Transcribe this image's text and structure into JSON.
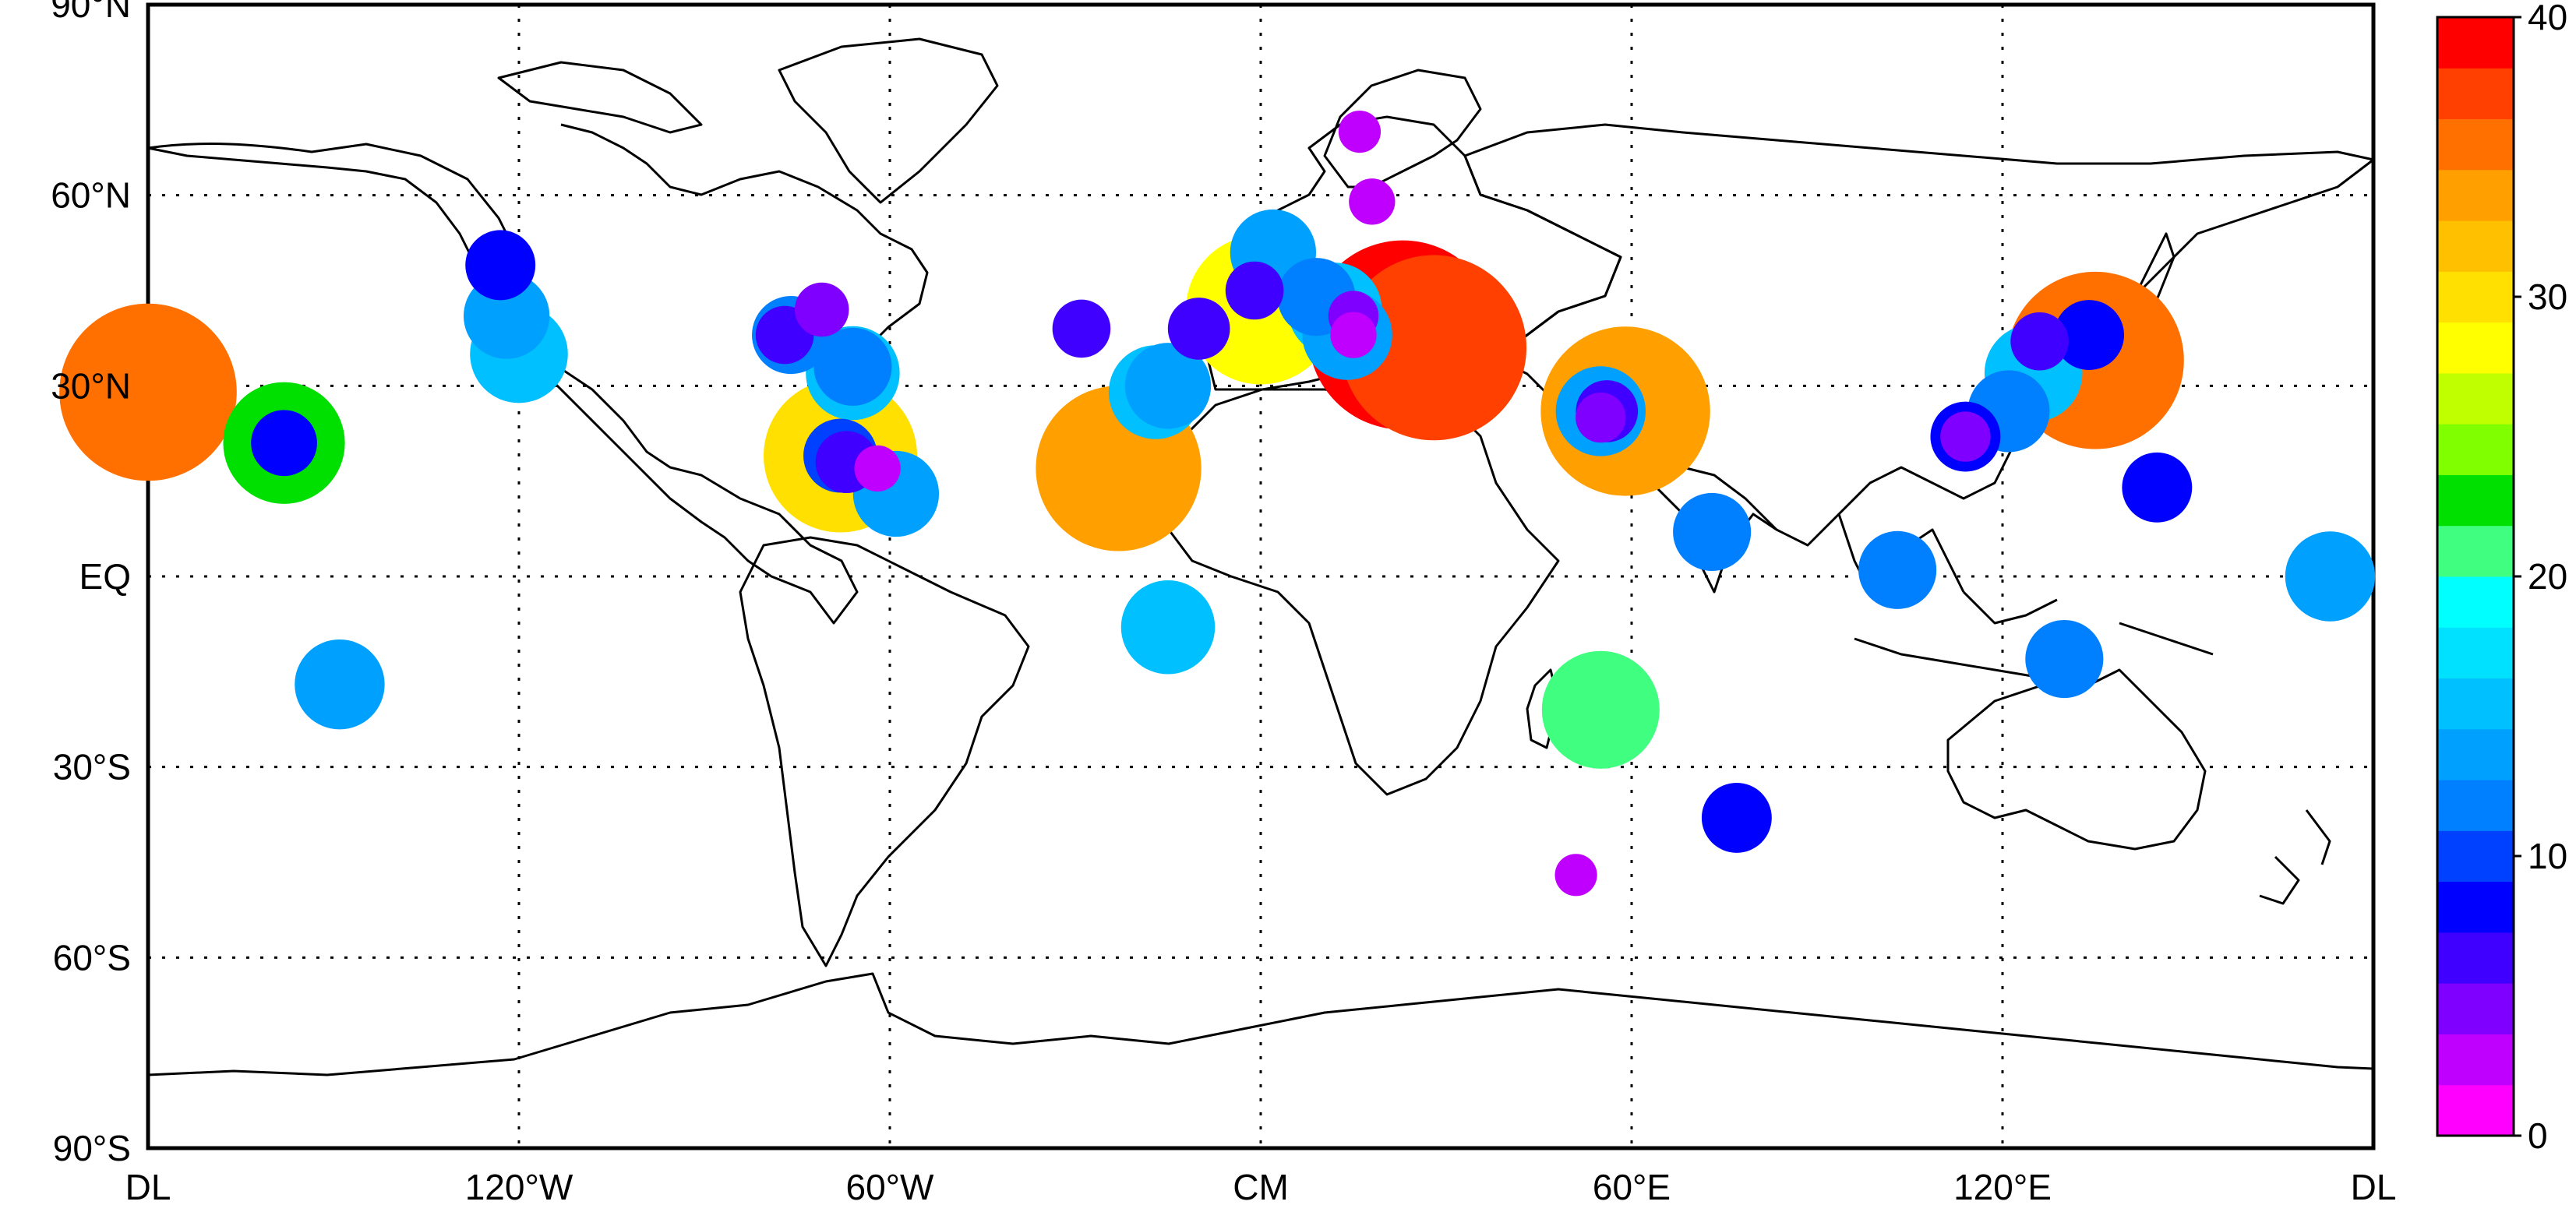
{
  "map": {
    "lat_labels": [
      {
        "lat": 90,
        "text": "90°N"
      },
      {
        "lat": 60,
        "text": "60°N"
      },
      {
        "lat": 30,
        "text": "30°N"
      },
      {
        "lat": 0,
        "text": "EQ"
      },
      {
        "lat": -30,
        "text": "30°S"
      },
      {
        "lat": -60,
        "text": "60°S"
      },
      {
        "lat": -90,
        "text": "90°S"
      }
    ],
    "lon_labels": [
      {
        "lon": -180,
        "text": "DL"
      },
      {
        "lon": -120,
        "text": "120°W"
      },
      {
        "lon": -60,
        "text": "60°W"
      },
      {
        "lon": 0,
        "text": "CM"
      },
      {
        "lon": 60,
        "text": "60°E"
      },
      {
        "lon": 120,
        "text": "120°E"
      },
      {
        "lon": 180,
        "text": "DL"
      }
    ],
    "grid_lons": [
      -180,
      -120,
      -60,
      0,
      60,
      120,
      180
    ],
    "grid_lats": [
      60,
      30,
      0,
      -30,
      -60
    ]
  },
  "colorbar": {
    "min": 0,
    "max": 40,
    "tick_labels": [
      {
        "value": 40,
        "text": "40"
      },
      {
        "value": 30,
        "text": "30"
      },
      {
        "value": 20,
        "text": "20"
      },
      {
        "value": 10,
        "text": "10"
      },
      {
        "value": 0,
        "text": "0"
      }
    ],
    "colors": [
      "#ff00ff",
      "#c000ff",
      "#8000ff",
      "#4000ff",
      "#0000ff",
      "#0040ff",
      "#0080ff",
      "#00a0ff",
      "#00c0ff",
      "#00e0ff",
      "#00ffff",
      "#40ff80",
      "#00e000",
      "#80ff00",
      "#c0ff00",
      "#ffff00",
      "#ffe000",
      "#ffc000",
      "#ffa000",
      "#ff7000",
      "#ff4000",
      "#ff0000"
    ]
  },
  "stations": [
    {
      "lon": -180,
      "lat": 29,
      "value": 36
    },
    {
      "lon": -158,
      "lat": 21,
      "value": 22
    },
    {
      "lon": -158,
      "lat": 21,
      "value": 8
    },
    {
      "lon": -149,
      "lat": -17,
      "value": 14
    },
    {
      "lon": -123,
      "lat": 49,
      "value": 9
    },
    {
      "lon": -122,
      "lat": 41,
      "value": 13
    },
    {
      "lon": -120,
      "lat": 35,
      "value": 16
    },
    {
      "lon": -71,
      "lat": 42,
      "value": 5
    },
    {
      "lon": -76,
      "lat": 38,
      "value": 11
    },
    {
      "lon": -77,
      "lat": 38,
      "value": 6
    },
    {
      "lon": -66,
      "lat": 32,
      "value": 15
    },
    {
      "lon": -66,
      "lat": 33,
      "value": 11
    },
    {
      "lon": -68,
      "lat": 19,
      "value": 30
    },
    {
      "lon": -68,
      "lat": 19,
      "value": 10
    },
    {
      "lon": -67,
      "lat": 18,
      "value": 7
    },
    {
      "lon": -62,
      "lat": 17,
      "value": 3
    },
    {
      "lon": -59,
      "lat": 13,
      "value": 13
    },
    {
      "lon": -29,
      "lat": 39,
      "value": 6
    },
    {
      "lon": -23,
      "lat": 17,
      "value": 33
    },
    {
      "lon": -17,
      "lat": 29,
      "value": 15
    },
    {
      "lon": -15,
      "lat": 30,
      "value": 13
    },
    {
      "lon": -15,
      "lat": -8,
      "value": 15
    },
    {
      "lon": -10,
      "lat": 39,
      "value": 7
    },
    {
      "lon": 2,
      "lat": 51,
      "value": 13
    },
    {
      "lon": 0,
      "lat": 42,
      "value": 29
    },
    {
      "lon": -1,
      "lat": 45,
      "value": 6
    },
    {
      "lon": 9,
      "lat": 44,
      "value": 11
    },
    {
      "lon": 12,
      "lat": 42,
      "value": 15
    },
    {
      "lon": 14,
      "lat": 38,
      "value": 14
    },
    {
      "lon": 15,
      "lat": 41,
      "value": 4
    },
    {
      "lon": 15,
      "lat": 38,
      "value": 3
    },
    {
      "lon": 23,
      "lat": 38,
      "value": 39
    },
    {
      "lon": 28,
      "lat": 36,
      "value": 38
    },
    {
      "lon": 16,
      "lat": 70,
      "value": 2
    },
    {
      "lon": 18,
      "lat": 59,
      "value": 3
    },
    {
      "lon": 55,
      "lat": 26,
      "value": 14
    },
    {
      "lon": 56,
      "lat": 26,
      "value": 7
    },
    {
      "lon": 59,
      "lat": 26,
      "value": 34
    },
    {
      "lon": 55,
      "lat": 25,
      "value": 4
    },
    {
      "lon": 55,
      "lat": -21,
      "value": 21
    },
    {
      "lon": 73,
      "lat": 7,
      "value": 11
    },
    {
      "lon": 77,
      "lat": -38,
      "value": 9
    },
    {
      "lon": 51,
      "lat": -47,
      "value": 2
    },
    {
      "lon": 103,
      "lat": 1,
      "value": 11
    },
    {
      "lon": 114,
      "lat": 22,
      "value": 9
    },
    {
      "lon": 114,
      "lat": 22,
      "value": 4
    },
    {
      "lon": 121,
      "lat": 26,
      "value": 12
    },
    {
      "lon": 125,
      "lat": 32,
      "value": 16
    },
    {
      "lon": 126,
      "lat": 37,
      "value": 6
    },
    {
      "lon": 135,
      "lat": 34,
      "value": 36
    },
    {
      "lon": 134,
      "lat": 38,
      "value": 9
    },
    {
      "lon": 145,
      "lat": 14,
      "value": 9
    },
    {
      "lon": 130,
      "lat": -13,
      "value": 11
    },
    {
      "lon": 173,
      "lat": 0,
      "value": 14
    }
  ]
}
